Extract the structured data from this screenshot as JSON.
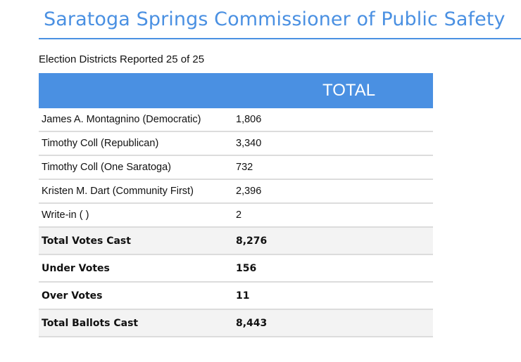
{
  "header": {
    "title": "Saratoga Springs Commissioner of Public Safety",
    "districts_reported": "Election Districts Reported 25 of 25",
    "accent_color": "#4a90e2"
  },
  "table": {
    "column_header": "TOTAL",
    "candidates": [
      {
        "name": "James A. Montagnino (Democratic)",
        "total": "1,806"
      },
      {
        "name": "Timothy Coll (Republican)",
        "total": "3,340"
      },
      {
        "name": "Timothy Coll (One Saratoga)",
        "total": "732"
      },
      {
        "name": "Kristen M. Dart (Community First)",
        "total": "2,396"
      },
      {
        "name": "Write-in ( )",
        "total": "2"
      }
    ],
    "summary": [
      {
        "label": "Total Votes Cast",
        "total": "8,276"
      },
      {
        "label": "Under Votes",
        "total": "156"
      },
      {
        "label": "Over Votes",
        "total": "11"
      },
      {
        "label": "Total Ballots Cast",
        "total": "8,443"
      }
    ]
  }
}
